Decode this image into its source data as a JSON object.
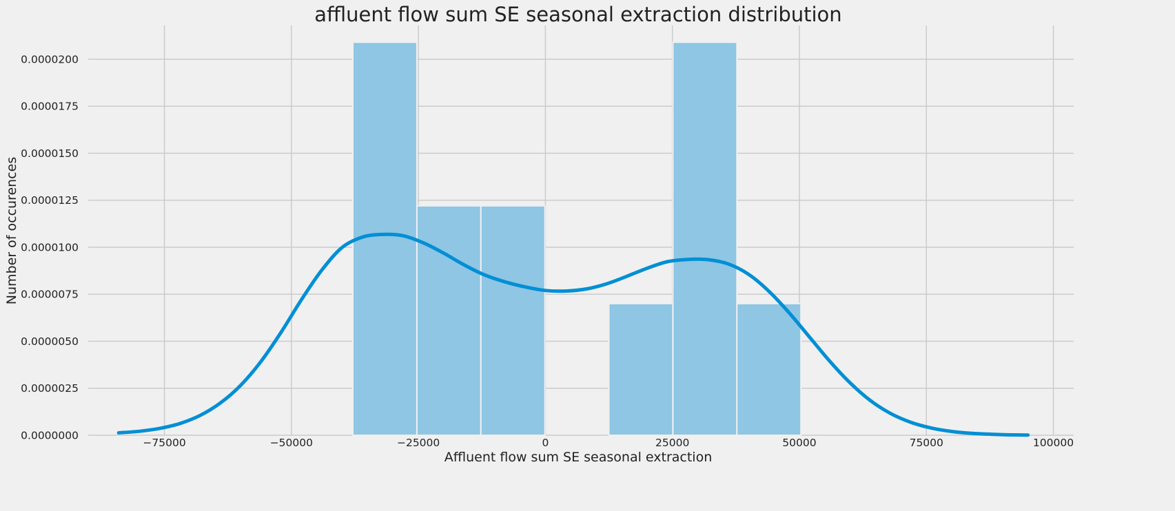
{
  "chart_data": {
    "type": "bar",
    "title": "affluent flow sum SE seasonal extraction distribution",
    "xlabel": "Affluent flow sum SE seasonal extraction",
    "ylabel": "Number of occurences",
    "xlim": [
      -90000,
      104000
    ],
    "ylim": [
      0,
      2.15e-05
    ],
    "grid": true,
    "x_ticks": [
      -75000,
      -50000,
      -25000,
      0,
      25000,
      50000,
      75000,
      100000
    ],
    "x_tick_labels": [
      "−75000",
      "−50000",
      "−25000",
      "0",
      "25000",
      "50000",
      "75000",
      "100000"
    ],
    "y_ticks": [
      0,
      2.5e-06,
      5e-06,
      7.5e-06,
      1e-05,
      1.25e-05,
      1.5e-05,
      1.75e-05,
      2e-05
    ],
    "y_tick_labels": [
      "0.0000000",
      "0.0000025",
      "0.0000050",
      "0.0000075",
      "0.0000100",
      "0.0000125",
      "0.0000150",
      "0.0000175",
      "0.0000200"
    ],
    "histogram": {
      "bins": [
        {
          "x0": -37900,
          "x1": -25300,
          "density": 2.09e-05
        },
        {
          "x0": -25300,
          "x1": -12700,
          "density": 1.22e-05
        },
        {
          "x0": -12700,
          "x1": -100,
          "density": 1.22e-05
        },
        {
          "x0": -100,
          "x1": 12500,
          "density": 0
        },
        {
          "x0": 12500,
          "x1": 25100,
          "density": 7e-06
        },
        {
          "x0": 25100,
          "x1": 37700,
          "density": 2.09e-05
        },
        {
          "x0": 37700,
          "x1": 50300,
          "density": 7e-06
        }
      ],
      "color": "#8ec6e4"
    },
    "kde": {
      "color": "#008fd5",
      "x": [
        -84000,
        -80000,
        -76000,
        -72000,
        -68000,
        -64000,
        -60000,
        -56000,
        -52000,
        -48000,
        -44000,
        -40000,
        -36000,
        -32000,
        -28000,
        -24000,
        -20000,
        -16000,
        -12000,
        -8000,
        -4000,
        0,
        4000,
        8000,
        12000,
        16000,
        20000,
        24000,
        28000,
        32000,
        36000,
        40000,
        44000,
        48000,
        52000,
        56000,
        60000,
        64000,
        68000,
        72000,
        76000,
        80000,
        84000,
        88000,
        92000,
        95000
      ],
      "y": [
        1.3e-07,
        2.1e-07,
        3.6e-07,
        6.2e-07,
        1.05e-06,
        1.71e-06,
        2.65e-06,
        3.92e-06,
        5.49e-06,
        7.22e-06,
        8.79e-06,
        9.99e-06,
        1.054e-05,
        1.068e-05,
        1.061e-05,
        1.023e-05,
        9.68e-06,
        9.06e-06,
        8.53e-06,
        8.16e-06,
        7.89e-06,
        7.7e-06,
        7.67e-06,
        7.78e-06,
        8.05e-06,
        8.45e-06,
        8.88e-06,
        9.23e-06,
        9.35e-06,
        9.34e-06,
        9.11e-06,
        8.56e-06,
        7.66e-06,
        6.51e-06,
        5.22e-06,
        3.93e-06,
        2.78e-06,
        1.84e-06,
        1.15e-06,
        6.8e-07,
        3.8e-07,
        2e-07,
        1e-07,
        5e-08,
        2e-08,
        1e-08
      ]
    }
  }
}
